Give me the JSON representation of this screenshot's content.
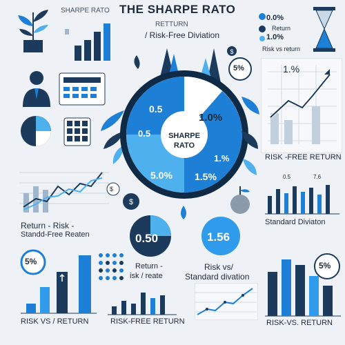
{
  "header": {
    "title": "THE SHARPE RATO",
    "top_left_label": "SHARPE RATO",
    "subtitle_top": "RETTURN",
    "subtitle_bottom": "/ Risk-Free Diviation"
  },
  "top_right": {
    "line1": "0.0%",
    "line2": "Return",
    "line3": "1.0%",
    "caption": "Risk vs return"
  },
  "center_pie": {
    "center_label_1": "SHARPE",
    "center_label_2": "RATO",
    "q1": "0.5",
    "q1b": "0.5",
    "q2": "1.0%",
    "q3": "1.%",
    "q4": "5.0%",
    "q5": "1.5%"
  },
  "right_chart": {
    "value_label": "1.%",
    "caption": "RISK -FREE RETURN"
  },
  "mid_left": {
    "caption_1": "Return - Risk -",
    "caption_2": "Standd-Free Reaten"
  },
  "mid_right": {
    "top_labels": [
      "0.5",
      "7.6"
    ],
    "caption": "Standard Diviaton"
  },
  "badges": {
    "big_circle_left": "0.50",
    "big_circle_right": "1.56",
    "small_5pct": "5%",
    "left_5pct": "5%",
    "right_5pct": "5%",
    "tiny_dollar": "$"
  },
  "bottom_left": {
    "caption": "RISK  VS  / RETURN"
  },
  "bottom_mid": {
    "caption_1": "Return -",
    "caption_2": "isk  / reate",
    "caption_3": "RISK-FREE RETURN"
  },
  "bottom_center": {
    "caption_1": "Risk vs/",
    "caption_2": "Standard divation"
  },
  "bottom_right": {
    "caption": "RISK-VS. RETURN"
  },
  "colors": {
    "navy": "#1b3a5c",
    "blue": "#1e7fd6",
    "light_blue": "#4fb0ee",
    "bg": "#eef1f5"
  }
}
